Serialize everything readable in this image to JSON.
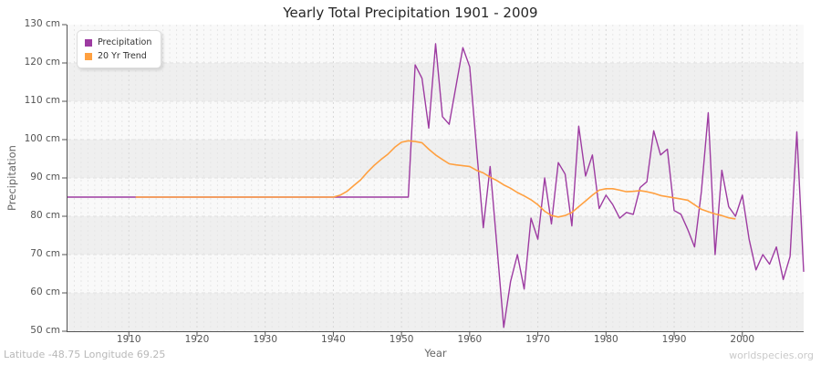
{
  "title": "Yearly Total Precipitation 1901 - 2009",
  "footer": {
    "left": "Latitude -48.75 Longitude 69.25",
    "right": "worldspecies.org"
  },
  "chart_data": {
    "type": "line",
    "title": "Yearly Total Precipitation 1901 - 2009",
    "xlabel": "Year",
    "ylabel": "Precipitation",
    "xlim": [
      1901,
      2009
    ],
    "ylim": [
      50,
      130
    ],
    "grid": "vertical dashed yearly lines, horizontal dashed lines every 10 cm, alternating gray bands",
    "legend_position": "top-left",
    "plot_bg": "#f9f9f9",
    "band_fill": "#efefef",
    "x_ticks": [
      1910,
      1920,
      1930,
      1940,
      1950,
      1960,
      1970,
      1980,
      1990,
      2000
    ],
    "x_tick_labels": [
      "1910",
      "1920",
      "1930",
      "1940",
      "1950",
      "1960",
      "1970",
      "1980",
      "1990",
      "2000"
    ],
    "y_ticks": [
      130,
      120,
      110,
      100,
      90,
      80,
      70,
      60,
      50
    ],
    "y_tick_labels": [
      "130 cm",
      "120 cm",
      "110 cm",
      "100 cm",
      "90 cm",
      "80 cm",
      "70 cm",
      "60 cm",
      "50 cm"
    ],
    "y_unit": "cm",
    "series": [
      {
        "name": "Precipitation",
        "color": "#9D3BA1",
        "start_year": 1901,
        "values": [
          85,
          85,
          85,
          85,
          85,
          85,
          85,
          85,
          85,
          85,
          85,
          85,
          85,
          85,
          85,
          85,
          85,
          85,
          85,
          85,
          85,
          85,
          85,
          85,
          85,
          85,
          85,
          85,
          85,
          85,
          85,
          85,
          85,
          85,
          85,
          85,
          85,
          85,
          85,
          85,
          85,
          85,
          85,
          85,
          85,
          85,
          85,
          85,
          85,
          85,
          85,
          119.5,
          116,
          103,
          125,
          106,
          104,
          114,
          124,
          119,
          98,
          77,
          93,
          72,
          51,
          63,
          70,
          61,
          79.5,
          74,
          90,
          78,
          94,
          91,
          77.5,
          103.5,
          90.5,
          96,
          82,
          85.5,
          83,
          79.5,
          81,
          80.5,
          87.5,
          89,
          102.3,
          96,
          97.5,
          81.5,
          80.5,
          76.5,
          72,
          86.5,
          107,
          70,
          92,
          82.5,
          80,
          85.5,
          74,
          66,
          70,
          67.5,
          72,
          63.5,
          69.5,
          102,
          65.5
        ]
      },
      {
        "name": "20 Yr Trend",
        "color": "#FFA040",
        "start_year": 1911,
        "values": [
          85,
          85,
          85,
          85,
          85,
          85,
          85,
          85,
          85,
          85,
          85,
          85,
          85,
          85,
          85,
          85,
          85,
          85,
          85,
          85,
          85,
          85,
          85,
          85,
          85,
          85,
          85,
          85,
          85,
          85,
          85.5,
          86.5,
          88,
          89.5,
          91.5,
          93.3,
          94.8,
          96.2,
          98,
          99.3,
          99.7,
          99.5,
          99.2,
          97.5,
          96,
          94.8,
          93.7,
          93.4,
          93.2,
          93,
          92,
          91.3,
          90.2,
          89.3,
          88.2,
          87.3,
          86.2,
          85.3,
          84.3,
          83,
          81.3,
          80.2,
          79.8,
          80.2,
          81,
          82.5,
          84,
          85.5,
          86.8,
          87.2,
          87.2,
          86.8,
          86.4,
          86.5,
          86.7,
          86.4,
          86,
          85.4,
          85.1,
          84.8,
          84.5,
          84.2,
          83,
          81.8,
          81.2,
          80.6,
          80.2,
          79.6,
          79.3
        ]
      }
    ]
  }
}
